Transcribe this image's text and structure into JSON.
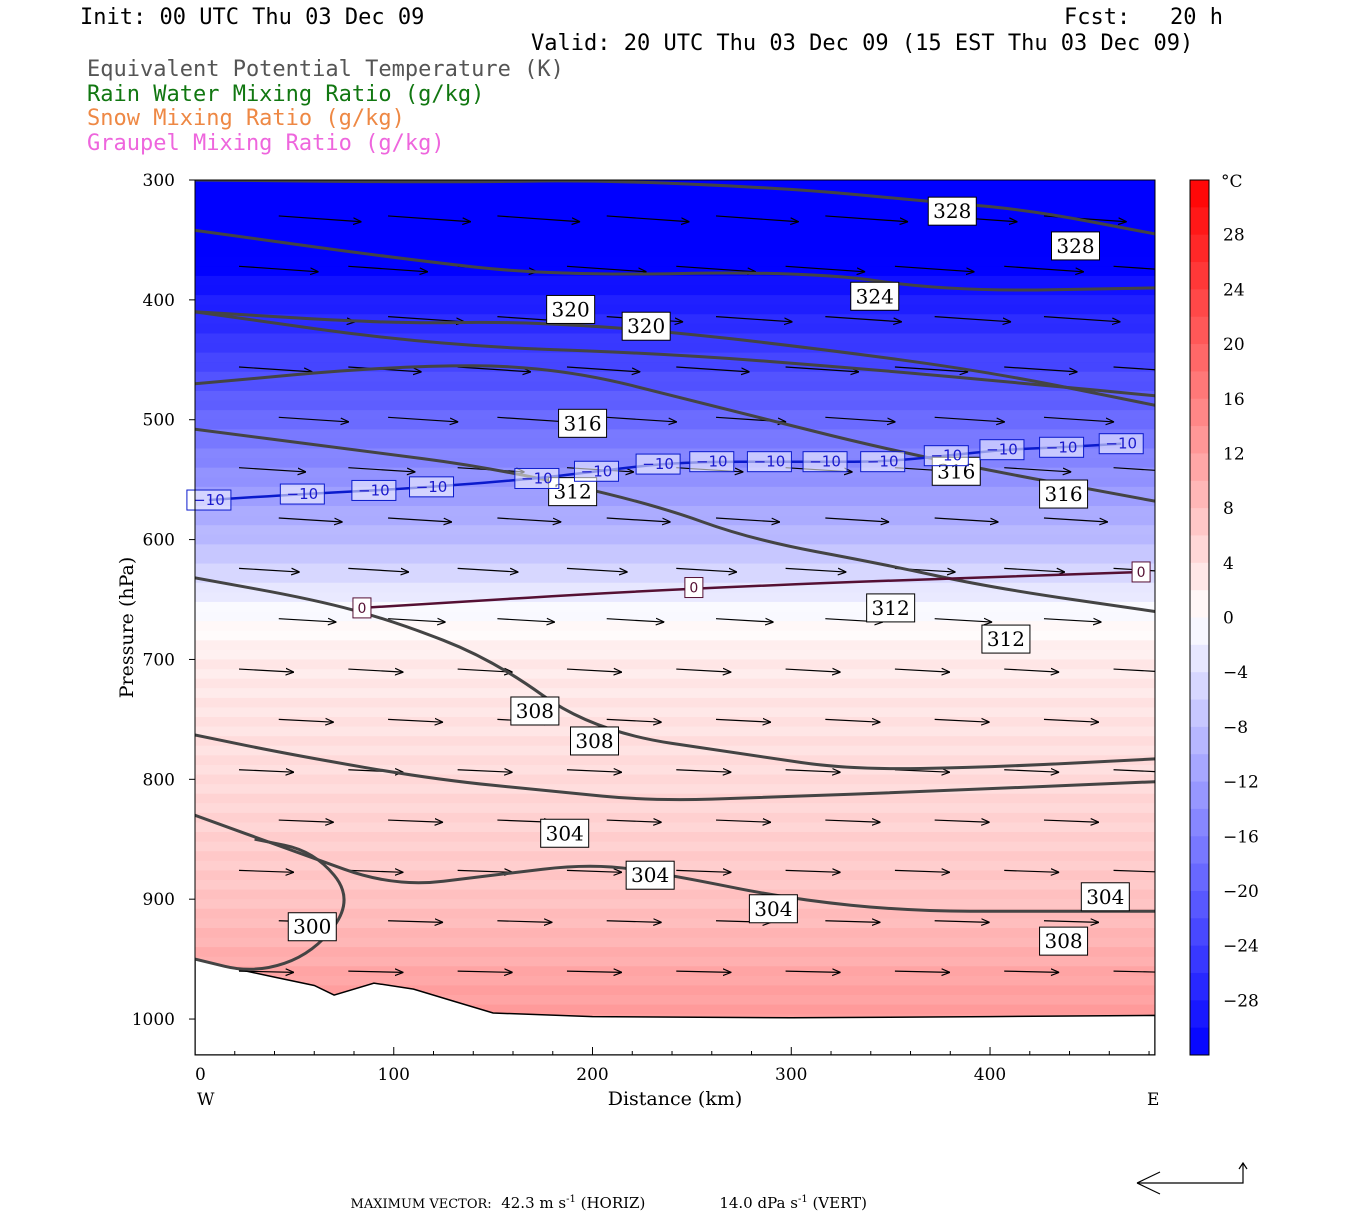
{
  "header": {
    "init": "Init: 00 UTC Thu 03 Dec 09",
    "fcst": "Fcst:   20 h",
    "valid": "Valid: 20 UTC Thu 03 Dec 09 (15 EST Thu 03 Dec 09)"
  },
  "legend": [
    {
      "text": "Equivalent Potential Temperature (K)",
      "color": "#555555"
    },
    {
      "text": "Rain Water Mixing Ratio (g/kg)",
      "color": "#117711"
    },
    {
      "text": "Snow Mixing Ratio (g/kg)",
      "color": "#ee8844"
    },
    {
      "text": "Graupel Mixing Ratio (g/kg)",
      "color": "#ee66dd"
    }
  ],
  "chart_data": {
    "type": "heatmap",
    "xlabel": "Distance (km)",
    "ylabel": "Pressure (hPa)",
    "x_ticks": [
      0,
      100,
      200,
      300,
      400
    ],
    "y_ticks": [
      300,
      400,
      500,
      600,
      700,
      800,
      900,
      1000
    ],
    "xlim": [
      0,
      483
    ],
    "ylim": [
      300,
      1030
    ],
    "y_inverted": true,
    "x_end_labels": {
      "left": "W",
      "right": "E"
    },
    "colorbar": {
      "unit": "°C",
      "ticks": [
        28,
        24,
        20,
        16,
        12,
        8,
        4,
        0,
        -4,
        -8,
        -12,
        -16,
        -20,
        -24,
        -28
      ],
      "range": [
        -32,
        32
      ]
    },
    "temperature_field": {
      "unit": "°C",
      "profile_pressure": [
        300,
        400,
        500,
        560,
        600,
        640,
        660,
        700,
        800,
        900,
        970,
        1000
      ],
      "profile_temp": [
        -40,
        -28,
        -18,
        -12,
        -8,
        -3,
        0,
        3,
        5,
        8,
        12,
        13
      ]
    },
    "theta_e_contours": [
      {
        "level": 328,
        "points": [
          [
            0,
            300
          ],
          [
            130,
            302
          ],
          [
            201,
            300
          ],
          [
            300,
            307
          ],
          [
            370,
            318
          ],
          [
            420,
            325
          ],
          [
            483,
            345
          ]
        ],
        "labels": [
          [
            381,
            326
          ],
          [
            443,
            355
          ]
        ]
      },
      {
        "level": 328,
        "points": [
          [
            0,
            342
          ],
          [
            100,
            365
          ],
          [
            180,
            380
          ],
          [
            310,
            376
          ],
          [
            380,
            393
          ],
          [
            483,
            390
          ]
        ],
        "labels": []
      },
      {
        "level": 324,
        "points": [
          [
            0,
            410
          ],
          [
            120,
            438
          ],
          [
            240,
            445
          ],
          [
            340,
            458
          ],
          [
            420,
            470
          ],
          [
            483,
            480
          ]
        ],
        "labels": [
          [
            342,
            397
          ]
        ]
      },
      {
        "level": 320,
        "points": [
          [
            0,
            410
          ],
          [
            100,
            420
          ],
          [
            160,
            418
          ],
          [
            230,
            425
          ],
          [
            310,
            440
          ],
          [
            400,
            460
          ],
          [
            483,
            488
          ]
        ],
        "labels": [
          [
            189,
            408
          ],
          [
            227,
            422
          ]
        ]
      },
      {
        "level": 320,
        "points": [
          [
            0,
            470
          ],
          [
            100,
            455
          ],
          [
            180,
            455
          ],
          [
            260,
            488
          ],
          [
            360,
            530
          ],
          [
            483,
            568
          ]
        ],
        "labels": []
      },
      {
        "level": 316,
        "points": [
          [
            0,
            508
          ],
          [
            80,
            525
          ],
          [
            150,
            540
          ],
          [
            230,
            570
          ],
          [
            280,
            600
          ],
          [
            345,
            620
          ],
          [
            400,
            640
          ],
          [
            483,
            660
          ]
        ],
        "labels": [
          [
            195,
            503
          ],
          [
            383,
            543
          ],
          [
            437,
            562
          ]
        ]
      },
      {
        "level": 312,
        "points": [
          [
            0,
            632
          ],
          [
            60,
            650
          ],
          [
            100,
            668
          ],
          [
            150,
            700
          ],
          [
            200,
            760
          ],
          [
            280,
            780
          ],
          [
            330,
            792
          ],
          [
            400,
            790
          ],
          [
            483,
            783
          ]
        ],
        "labels": [
          [
            190,
            560
          ],
          [
            350,
            657
          ],
          [
            408,
            683
          ]
        ]
      },
      {
        "level": 308,
        "points": [
          [
            0,
            763
          ],
          [
            50,
            780
          ],
          [
            120,
            800
          ],
          [
            180,
            810
          ],
          [
            230,
            818
          ],
          [
            290,
            815
          ],
          [
            370,
            810
          ],
          [
            483,
            802
          ]
        ],
        "labels": [
          [
            171,
            743
          ],
          [
            201,
            768
          ],
          [
            437,
            935
          ]
        ]
      },
      {
        "level": 304,
        "points": [
          [
            0,
            830
          ],
          [
            50,
            860
          ],
          [
            100,
            890
          ],
          [
            150,
            880
          ],
          [
            200,
            870
          ],
          [
            240,
            880
          ],
          [
            300,
            900
          ],
          [
            360,
            910
          ],
          [
            420,
            910
          ],
          [
            483,
            910
          ]
        ],
        "labels": [
          [
            186,
            845
          ],
          [
            229,
            880
          ],
          [
            291,
            908
          ],
          [
            458,
            898
          ]
        ]
      },
      {
        "level": 300,
        "points": [
          [
            0,
            950
          ],
          [
            30,
            962
          ],
          [
            60,
            945
          ],
          [
            80,
            900
          ],
          [
            60,
            860
          ],
          [
            30,
            850
          ]
        ],
        "labels": [
          [
            59,
            923
          ]
        ]
      }
    ],
    "isotherm_labels": [
      {
        "value": -10,
        "pts": [
          [
            7,
            567
          ],
          [
            54,
            562
          ],
          [
            90,
            559
          ],
          [
            119,
            556
          ],
          [
            172,
            549
          ],
          [
            202,
            543
          ],
          [
            233,
            537
          ],
          [
            260,
            535
          ],
          [
            289,
            535
          ],
          [
            317,
            535
          ],
          [
            346,
            535
          ],
          [
            378,
            530
          ],
          [
            406,
            525
          ],
          [
            436,
            523
          ],
          [
            466,
            520
          ]
        ]
      },
      {
        "value": 0,
        "pts": [
          [
            84,
            657
          ],
          [
            251,
            640
          ],
          [
            476,
            627
          ]
        ]
      }
    ],
    "wind_vectors": "approx. 42.3 m s^-1 maximum; mostly westerly with downward tilt aloft"
  },
  "footer": {
    "max_vector": "MAXIMUM VECTOR:",
    "horiz": "42.3 m s",
    "horiz_sup": "-1",
    "horiz_tail": " (HORIZ)",
    "vert": "14.0 dPa s",
    "vert_sup": "-1",
    "vert_tail": " (VERT)"
  }
}
